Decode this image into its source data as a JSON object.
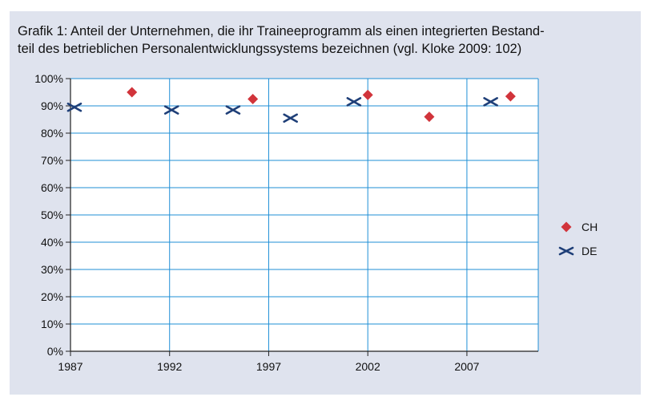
{
  "title": {
    "line1": "Grafik 1: Anteil der Unternehmen, die ihr Traineeprogramm als einen integrierten Bestand-",
    "line2": "teil des betrieblichen Personalentwicklungssystems bezeichnen (vgl. Kloke 2009: 102)"
  },
  "chart_data": {
    "type": "scatter",
    "title": "Grafik 1: Anteil der Unternehmen, die ihr Traineeprogramm als einen integrierten Bestandteil des betrieblichen Personalentwicklungssystems bezeichnen (vgl. Kloke 2009: 102)",
    "xlim": [
      1987,
      2010.6
    ],
    "ylim": [
      0,
      100
    ],
    "x_ticks": [
      1987,
      1992,
      1997,
      2002,
      2007
    ],
    "x_tick_labels": [
      "1987",
      "1992",
      "1997",
      "2002",
      "2007"
    ],
    "y_ticks": [
      0,
      10,
      20,
      30,
      40,
      50,
      60,
      70,
      80,
      90,
      100
    ],
    "y_tick_labels": [
      "0%",
      "10%",
      "20%",
      "30%",
      "40%",
      "50%",
      "60%",
      "70%",
      "80%",
      "90%",
      "100%"
    ],
    "grid": true,
    "legend_position": "right",
    "series": [
      {
        "name": "CH",
        "marker": "diamond",
        "color": "#d1343b",
        "x": [
          1990.1,
          1996.2,
          2002.0,
          2005.1,
          2009.2
        ],
        "y": [
          95,
          92.5,
          94,
          86,
          93.5
        ]
      },
      {
        "name": "DE",
        "marker": "x",
        "color": "#1f3f78",
        "x": [
          1987.2,
          1992.1,
          1995.2,
          1998.1,
          2001.3,
          2008.2
        ],
        "y": [
          89.5,
          88.5,
          88.5,
          85.5,
          91.5,
          91.5
        ]
      }
    ]
  }
}
